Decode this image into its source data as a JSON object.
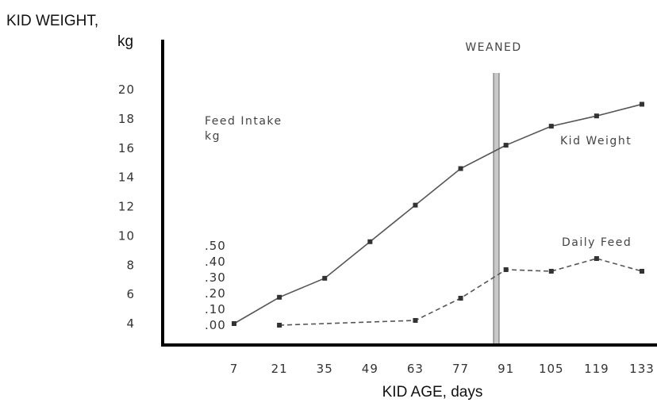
{
  "chart_data": {
    "type": "line",
    "title": "",
    "ylabel_line1": "KID WEIGHT,",
    "ylabel_line2": "kg",
    "xlabel": "KID AGE, days",
    "x_ticks": [
      7,
      21,
      35,
      49,
      63,
      77,
      91,
      105,
      119,
      133
    ],
    "y_ticks": [
      4,
      6,
      8,
      10,
      12,
      14,
      16,
      18,
      20
    ],
    "ylim": [
      4,
      20
    ],
    "feed_axis": {
      "label_line1": "Feed Intake",
      "label_line2": "kg",
      "ticks": [
        ".00",
        ".10",
        ".20",
        ".30",
        ".40",
        ".50"
      ],
      "values": [
        0.0,
        0.1,
        0.2,
        0.3,
        0.4,
        0.5
      ]
    },
    "weaning": {
      "label": "WEANED",
      "day": 91
    },
    "series": [
      {
        "name": "Kid Weight",
        "axis": "weight",
        "style": "solid",
        "x": [
          7,
          21,
          35,
          49,
          63,
          77,
          91,
          105,
          119,
          133
        ],
        "values": [
          4.0,
          5.8,
          7.1,
          9.6,
          12.1,
          14.6,
          16.2,
          17.5,
          18.2,
          19.0
        ]
      },
      {
        "name": "Daily Feed",
        "axis": "feed",
        "style": "dashed",
        "x": [
          21,
          63,
          77,
          91,
          105,
          119,
          133
        ],
        "values": [
          0.0,
          0.03,
          0.17,
          0.35,
          0.34,
          0.42,
          0.34
        ]
      }
    ],
    "grid": false,
    "legend": "inline labels"
  }
}
